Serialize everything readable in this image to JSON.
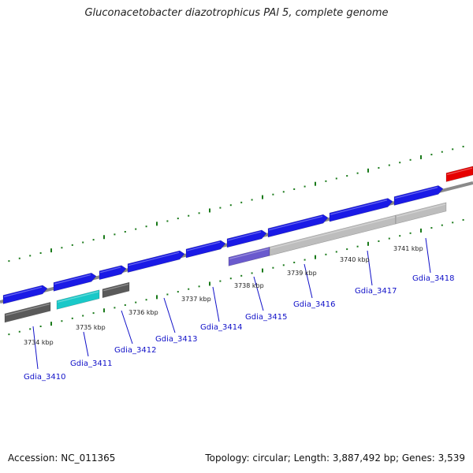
{
  "title": "Gluconacetobacter diazotrophicus PAl 5, complete genome",
  "footer": {
    "accession": "Accession: NC_011365",
    "summary": "Topology: circular; Length: 3,887,492 bp; Genes: 3,539"
  },
  "colors": {
    "forward_gene": "#1a1ae6",
    "gray_gene": "#5a5a5a",
    "light_gray_gene": "#bdbdbd",
    "cyan_gene": "#19c8c8",
    "purple_gene": "#6a5acd",
    "red_gene": "#e60000",
    "backbone": "#8a8a8a",
    "ticks": "#1a7a1a",
    "label": "#1010c8"
  },
  "kbp_ticks": [
    "3734 kbp",
    "3735 kbp",
    "3736 kbp",
    "3737 kbp",
    "3738 kbp",
    "3739 kbp",
    "3740 kbp",
    "3741 kbp"
  ],
  "gene_labels": [
    "Gdia_3410",
    "Gdia_3411",
    "Gdia_3412",
    "Gdia_3413",
    "Gdia_3414",
    "Gdia_3415",
    "Gdia_3416",
    "Gdia_3417",
    "Gdia_3418"
  ]
}
